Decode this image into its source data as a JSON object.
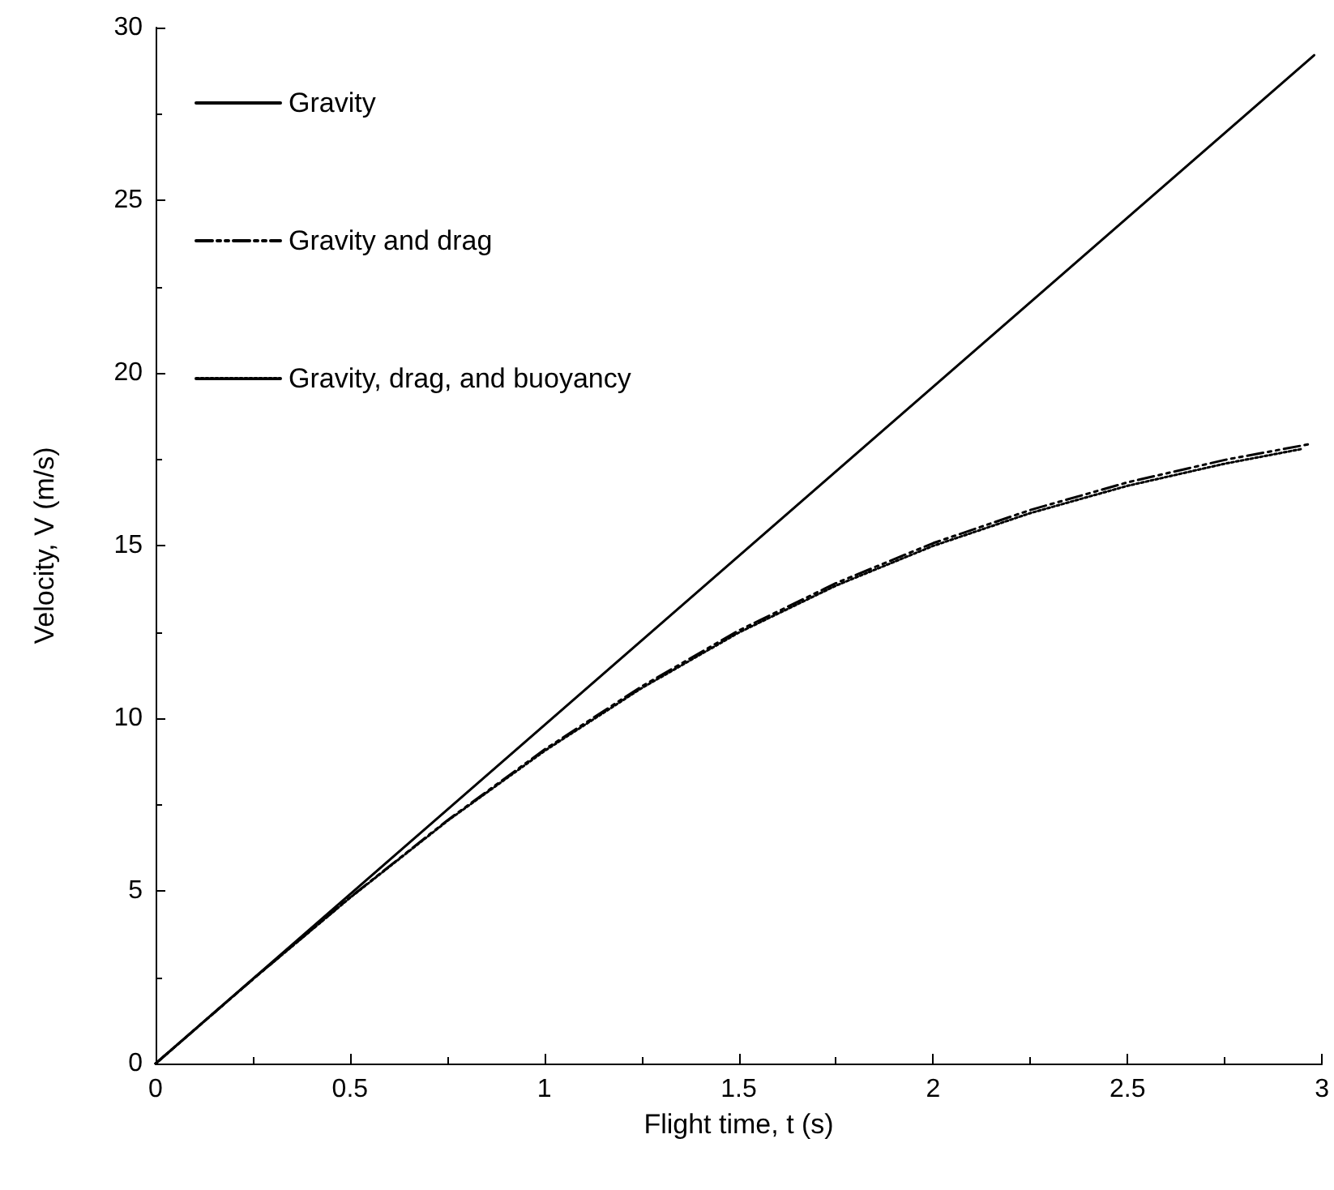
{
  "chart_data": {
    "type": "line",
    "xlabel": "Flight time, t (s)",
    "ylabel": "Velocity, V (m/s)",
    "xlim": [
      0,
      3
    ],
    "xticks": [
      0,
      0.5,
      1,
      1.5,
      2,
      2.5,
      3
    ],
    "ylim": [
      0,
      30
    ],
    "yticks": [
      0,
      5,
      10,
      15,
      20,
      25,
      30
    ],
    "grid": false,
    "legend": "top left",
    "marker": "none",
    "series": [
      {
        "name": "Gravity",
        "color": "#000000",
        "line_style": "solid",
        "x": [
          0,
          2.98
        ],
        "values": [
          0,
          29.2
        ]
      },
      {
        "name": "Gravity and drag",
        "color": "#000000",
        "line_style": "dashed",
        "x": [
          0,
          0.25,
          0.5,
          0.75,
          1,
          1.25,
          1.5,
          1.75,
          2,
          2.25,
          2.5,
          2.75,
          2.97
        ],
        "values": [
          0,
          2.44,
          4.81,
          7.04,
          9.09,
          10.92,
          12.54,
          13.91,
          15.07,
          16.03,
          16.83,
          17.48,
          17.94
        ]
      },
      {
        "name": "Gravity, drag, and buoyancy",
        "color": "#000000",
        "line_style": "dotted",
        "x": [
          0,
          0.25,
          0.5,
          0.75,
          1,
          1.25,
          1.5,
          1.75,
          2,
          2.25,
          2.5,
          2.75,
          2.95
        ],
        "values": [
          0,
          2.44,
          4.8,
          7.02,
          9.05,
          10.87,
          12.48,
          13.84,
          14.99,
          15.94,
          16.73,
          17.37,
          17.8
        ]
      }
    ]
  }
}
